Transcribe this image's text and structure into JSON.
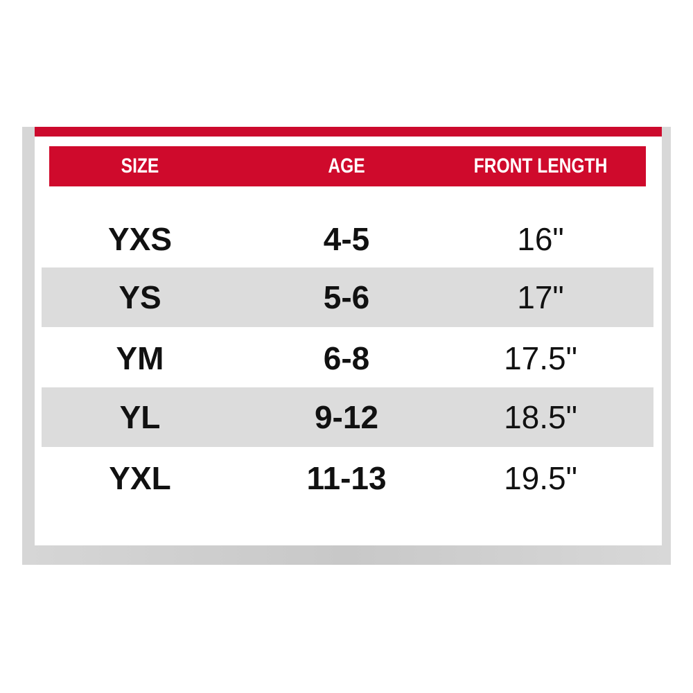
{
  "colors": {
    "header_red": "#cf0a2c",
    "alt_row": "#dcdcdc"
  },
  "table": {
    "headers": [
      "SIZE",
      "AGE",
      "FRONT LENGTH"
    ],
    "rows": [
      [
        "YXS",
        "4-5",
        "16\""
      ],
      [
        "YS",
        "5-6",
        "17\""
      ],
      [
        "YM",
        "6-8",
        "17.5\""
      ],
      [
        "YL",
        "9-12",
        "18.5\""
      ],
      [
        "YXL",
        "11-13",
        "19.5\""
      ]
    ]
  }
}
